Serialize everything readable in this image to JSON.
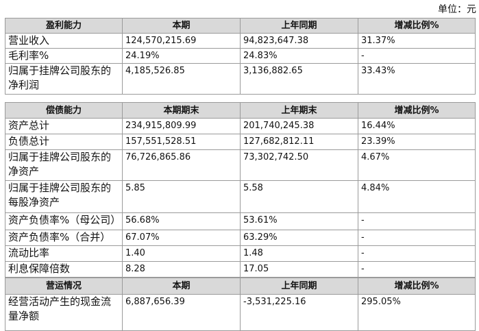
{
  "unit": "单位：元",
  "sections": [
    {
      "header": [
        "盈利能力",
        "本期",
        "上年同期",
        "增减比例%"
      ],
      "rows": [
        [
          "营业收入",
          "124,570,215.69",
          "94,823,647.38",
          "31.37%"
        ],
        [
          "毛利率%",
          "24.19%",
          "24.83%",
          "-"
        ],
        [
          "归属于挂牌公司股东的净利润",
          "4,185,526.85",
          "3,136,882.65",
          "33.43%"
        ]
      ]
    },
    {
      "header": [
        "偿债能力",
        "本期期末",
        "上年期末",
        "增减比例%"
      ],
      "rows": [
        [
          "资产总计",
          "234,915,809.99",
          "201,740,245.38",
          "16.44%"
        ],
        [
          "负债总计",
          "157,551,528.51",
          "127,682,812.11",
          "23.39%"
        ],
        [
          "归属于挂牌公司股东的净资产",
          "76,726,865.86",
          "73,302,742.50",
          "4.67%"
        ],
        [
          "归属于挂牌公司股东的每股净资产",
          "5.85",
          "5.58",
          "4.84%"
        ],
        [
          "资产负债率%（母公司）",
          "56.68%",
          "53.61%",
          "-"
        ],
        [
          "资产负债率%（合并）",
          "67.07%",
          "63.29%",
          "-"
        ],
        [
          "流动比率",
          "1.40",
          "1.48",
          "-"
        ],
        [
          "利息保障倍数",
          "8.28",
          "17.05",
          "-"
        ]
      ]
    },
    {
      "header": [
        "营运情况",
        "本期",
        "上年同期",
        "增减比例%"
      ],
      "rows": [
        [
          "经营活动产生的现金流量净额",
          "6,887,656.39",
          "-3,531,225.16",
          "295.05%"
        ]
      ]
    }
  ]
}
